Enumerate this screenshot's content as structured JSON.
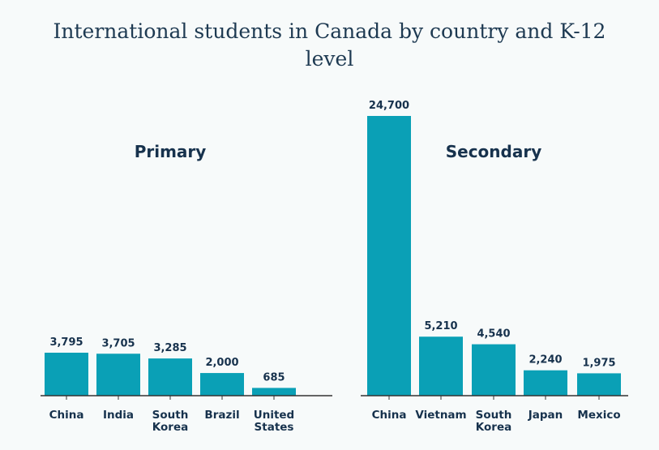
{
  "chart_data": [
    {
      "type": "bar",
      "title": "Primary",
      "categories": [
        "China",
        "India",
        "South Korea",
        "Brazil",
        "United States"
      ],
      "values": [
        3795,
        3705,
        3285,
        2000,
        685
      ],
      "labels": [
        "3,795",
        "3,705",
        "3,285",
        "2,000",
        "685"
      ],
      "ylim": [
        0,
        24700
      ]
    },
    {
      "type": "bar",
      "title": "Secondary",
      "categories": [
        "China",
        "Vietnam",
        "South Korea",
        "Japan",
        "Mexico"
      ],
      "values": [
        24700,
        5210,
        4540,
        2240,
        1975
      ],
      "labels": [
        "24,700",
        "5,210",
        "4,540",
        "2,240",
        "1,975"
      ],
      "ylim": [
        0,
        24700
      ]
    }
  ],
  "title_lines": [
    "International students in Canada by country and K-12",
    "level"
  ],
  "colors": {
    "bar": "#0aa0b6",
    "text": "#17324d",
    "axis": "#333333"
  }
}
